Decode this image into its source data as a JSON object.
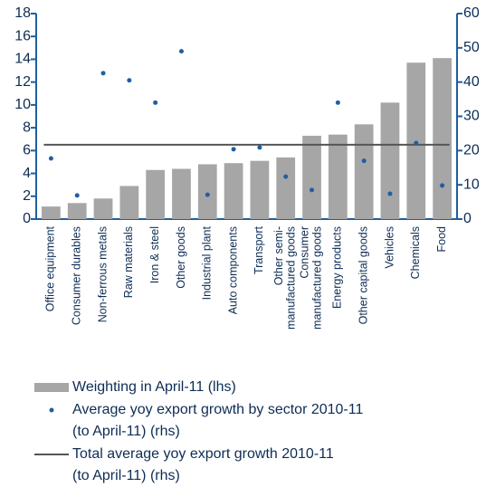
{
  "chart_data": {
    "type": "bar",
    "categories": [
      "Office equipment",
      "Consumer durables",
      "Non-ferrous metals",
      "Raw materials",
      "Iron & steel",
      "Other goods",
      "Industrial plant",
      "Auto components",
      "Transport",
      "Other semi-\nmanufactured goods",
      "Consumer\nmanufactured goods",
      "Energy products",
      "Other capital goods",
      "Vehicles",
      "Chemicals",
      "Food"
    ],
    "series": [
      {
        "name": "Weighting in April-11 (lhs)",
        "type": "bar",
        "color": "#a6a6a6",
        "axis": "y",
        "values": [
          1.1,
          1.4,
          1.8,
          2.9,
          4.3,
          4.4,
          4.8,
          4.9,
          5.1,
          5.4,
          7.3,
          7.4,
          8.3,
          10.2,
          13.7,
          14.1
        ]
      },
      {
        "name": "Average yoy export growth by sector 2010-11\n(to April-11) (rhs)",
        "type": "scatter",
        "color": "#1f5fa0",
        "axis": "y2",
        "values": [
          17.7,
          6.9,
          42.6,
          40.5,
          34,
          49,
          7.1,
          20.4,
          20.9,
          12.4,
          8.5,
          34,
          17,
          7.4,
          22.2,
          9.8
        ]
      },
      {
        "name": "Total average yoy export growth 2010-11\n(to April-11) (rhs)",
        "type": "line",
        "color": "#555555",
        "axis": "y2",
        "value": 21.7
      }
    ],
    "ylim": [
      0,
      18
    ],
    "yticks": [
      0,
      2,
      4,
      6,
      8,
      10,
      12,
      14,
      16,
      18
    ],
    "y2lim": [
      0,
      60
    ],
    "y2ticks": [
      0,
      10,
      20,
      30,
      40,
      50,
      60
    ]
  }
}
